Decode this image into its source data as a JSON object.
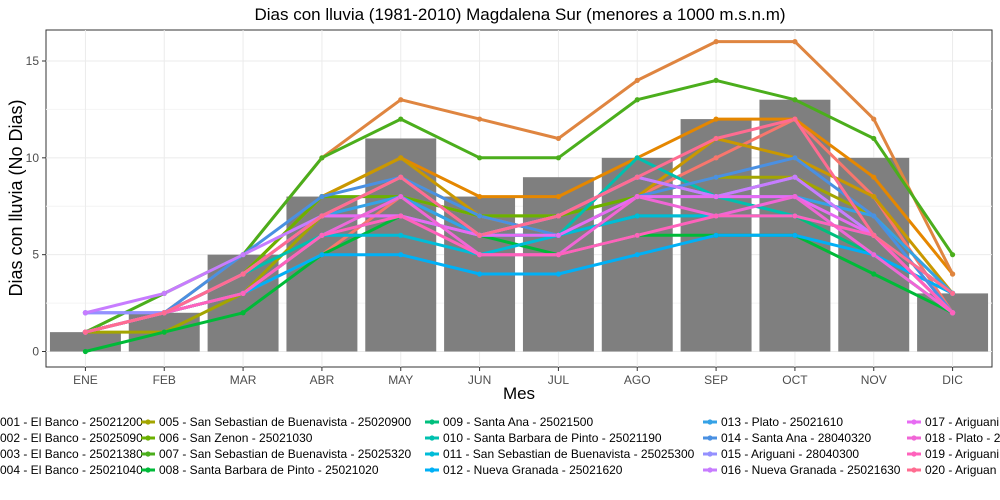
{
  "chart_data": {
    "type": "bar+line",
    "title": "Dias con lluvia (1981-2010) Magdalena Sur (menores a 1000 m.s.n.m)",
    "xlabel": "Mes",
    "ylabel": "Dias con lluvia (No Dias)",
    "ylim": [
      -0.8,
      16.6
    ],
    "yticks": [
      0,
      5,
      10,
      15
    ],
    "grid": true,
    "legend_position": "bottom",
    "categories": [
      "ENE",
      "FEB",
      "MAR",
      "ABR",
      "MAY",
      "JUN",
      "JUL",
      "AGO",
      "SEP",
      "OCT",
      "NOV",
      "DIC"
    ],
    "bars": {
      "name": "",
      "color": "#7f7f7f",
      "values": [
        1,
        2,
        5,
        8,
        11,
        8,
        9,
        10,
        12,
        13,
        10,
        3
      ]
    },
    "series": [
      {
        "name": "001 - El Banco - 25021200",
        "color": "#F8766D",
        "values": [
          1,
          2,
          3,
          5,
          8,
          7,
          6,
          8,
          10,
          12,
          8,
          2
        ]
      },
      {
        "name": "002 - El Banco - 25025090",
        "color": "#E58700",
        "values": [
          1,
          2,
          4,
          8,
          10,
          8,
          8,
          10,
          12,
          12,
          9,
          4
        ]
      },
      {
        "name": "003 - El Banco - 25021380",
        "color": "#DF8540",
        "values": [
          1,
          2,
          5,
          10,
          13,
          12,
          11,
          14,
          16,
          16,
          12,
          4
        ]
      },
      {
        "name": "004 - El Banco - 25021040",
        "color": "#C99800",
        "values": [
          1,
          2,
          4,
          8,
          10,
          7,
          6,
          8,
          11,
          10,
          8,
          3
        ]
      },
      {
        "name": "005 - San Sebastian de Buenavista - 25020900",
        "color": "#A3A500",
        "values": [
          1,
          1,
          3,
          7,
          9,
          7,
          7,
          8,
          9,
          9,
          7,
          3
        ]
      },
      {
        "name": "006 - San Zenon - 25021030",
        "color": "#6BB100",
        "values": [
          1,
          2,
          4,
          8,
          8,
          7,
          7,
          8,
          8,
          9,
          6,
          2
        ]
      },
      {
        "name": "007 - San Sebastian de Buenavista - 25025320",
        "color": "#4BAE1C",
        "values": [
          1,
          3,
          5,
          10,
          12,
          10,
          10,
          13,
          14,
          13,
          11,
          5
        ]
      },
      {
        "name": "008 - Santa Barbara de Pinto - 25021020",
        "color": "#00BA38",
        "values": [
          0,
          1,
          2,
          5,
          7,
          6,
          5,
          6,
          6,
          6,
          4,
          2
        ]
      },
      {
        "name": "009 - Santa Ana - 25021500",
        "color": "#00BF7D",
        "values": [
          1,
          2,
          3,
          6,
          7,
          6,
          6,
          7,
          7,
          7,
          5,
          2
        ]
      },
      {
        "name": "010 - Santa Barbara de Pinto - 25021190",
        "color": "#00C0AF",
        "values": [
          1,
          2,
          4,
          6,
          8,
          6,
          6,
          10,
          8,
          7,
          6,
          3
        ]
      },
      {
        "name": "011 - San Sebastian de Buenavista - 25025300",
        "color": "#00BCD8",
        "values": [
          1,
          2,
          3,
          6,
          6,
          5,
          6,
          7,
          7,
          7,
          6,
          3
        ]
      },
      {
        "name": "012 - Nueva Granada - 25021620",
        "color": "#00B0F6",
        "values": [
          1,
          2,
          3,
          5,
          5,
          4,
          4,
          5,
          6,
          6,
          5,
          3
        ]
      },
      {
        "name": "013 - Plato - 25021610",
        "color": "#35A2E6",
        "values": [
          1,
          2,
          4,
          7,
          8,
          6,
          6,
          8,
          8,
          8,
          7,
          3
        ]
      },
      {
        "name": "014 - Santa Ana - 28040320",
        "color": "#4A90E2",
        "values": [
          2,
          2,
          5,
          8,
          9,
          7,
          6,
          8,
          9,
          10,
          7,
          2
        ]
      },
      {
        "name": "015 - Ariguani - 28040300",
        "color": "#9590FF",
        "values": [
          2,
          2,
          4,
          7,
          9,
          6,
          7,
          9,
          8,
          9,
          6,
          2
        ]
      },
      {
        "name": "016 - Nueva Granada - 25021630",
        "color": "#C77CFF",
        "values": [
          2,
          3,
          5,
          7,
          7,
          6,
          7,
          9,
          8,
          9,
          6,
          2
        ]
      },
      {
        "name": "017 - Ariguani",
        "color": "#E76BF3",
        "values": [
          1,
          2,
          4,
          7,
          7,
          6,
          6,
          8,
          8,
          8,
          6,
          2
        ]
      },
      {
        "name": "018 - Plato - 2",
        "color": "#F066D6",
        "values": [
          1,
          2,
          3,
          6,
          8,
          5,
          5,
          8,
          7,
          8,
          5,
          2
        ]
      },
      {
        "name": "019 - Ariguani",
        "color": "#FF62BC",
        "values": [
          1,
          2,
          3,
          6,
          7,
          5,
          5,
          6,
          7,
          7,
          6,
          2
        ]
      },
      {
        "name": "020 - Ariguan",
        "color": "#FF6C91",
        "values": [
          1,
          2,
          4,
          7,
          9,
          6,
          7,
          9,
          11,
          12,
          6,
          3
        ]
      }
    ],
    "legend_display": [
      "001 - El Banco - 25021200",
      "002 - El Banco - 25025090",
      "003 - El Banco - 25021380",
      "004 - El Banco - 25021040",
      "005 - San Sebastian de Buenavista - 25020900",
      "006 - San Zenon - 25021030",
      "007 - San Sebastian de Buenavista - 25025320",
      "008 - Santa Barbara de Pinto - 25021020",
      "009 - Santa Ana - 25021500",
      "010 - Santa Barbara de Pinto - 25021190",
      "011 - San Sebastian de Buenavista - 25025300",
      "012 - Nueva Granada - 25021620",
      "013 - Plato - 25021610",
      "014 - Santa Ana - 28040320",
      "015 - Ariguani - 28040300",
      "016 - Nueva Granada - 25021630",
      "017 - Ariguani",
      "018 - Plato - 2",
      "019 - Ariguani",
      "020 - Ariguan"
    ]
  }
}
